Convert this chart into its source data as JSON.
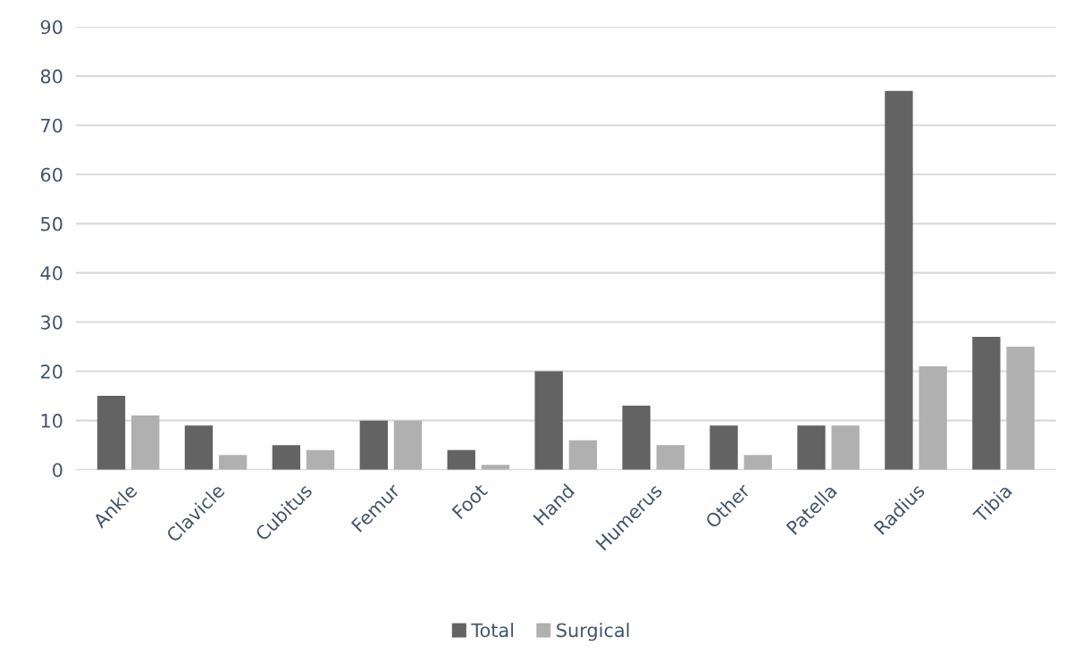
{
  "chart_data": {
    "type": "bar",
    "categories": [
      "Ankle",
      "Clavicle",
      "Cubitus",
      "Femur",
      "Foot",
      "Hand",
      "Humerus",
      "Other",
      "Patella",
      "Radius",
      "Tibia"
    ],
    "series": [
      {
        "name": "Total",
        "color": "#636363",
        "values": [
          15,
          9,
          5,
          10,
          4,
          20,
          13,
          9,
          9,
          77,
          27
        ]
      },
      {
        "name": "Surgical",
        "color": "#b0b0b0",
        "values": [
          11,
          3,
          4,
          10,
          1,
          6,
          5,
          3,
          9,
          21,
          25
        ]
      }
    ],
    "ylim": [
      0,
      90
    ],
    "yticks": [
      0,
      10,
      20,
      30,
      40,
      50,
      60,
      70,
      80,
      90
    ],
    "grid": "y",
    "legend": "bottom"
  }
}
